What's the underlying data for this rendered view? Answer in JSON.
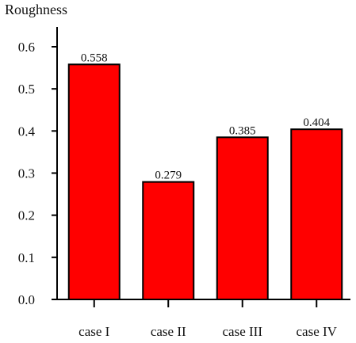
{
  "chart_data": {
    "type": "bar",
    "title": "",
    "xlabel": "",
    "ylabel": "Roughness",
    "ylim": [
      0,
      0.65
    ],
    "yticks": [
      "0.0",
      "0.1",
      "0.2",
      "0.3",
      "0.4",
      "0.5",
      "0.6"
    ],
    "categories": [
      "case I",
      "case II",
      "case III",
      "case IV"
    ],
    "values": [
      0.558,
      0.279,
      0.385,
      0.404
    ],
    "value_labels": [
      "0.558",
      "0.279",
      "0.385",
      "0.404"
    ],
    "grid": false,
    "colors": {
      "bar_fill": "#ff0000",
      "bar_stroke": "#000000",
      "axis": "#000000"
    }
  }
}
